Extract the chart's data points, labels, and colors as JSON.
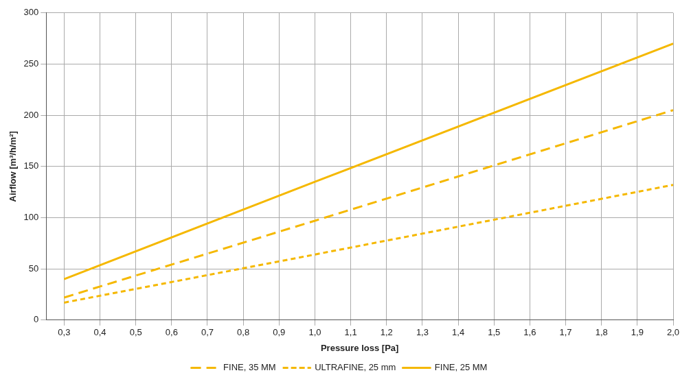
{
  "chart_data": {
    "type": "line",
    "xlabel": "Pressure loss [Pa]",
    "ylabel": "Airflow [m³/h/m²]",
    "x": [
      0.3,
      1.0,
      2.0
    ],
    "series": [
      {
        "name": "FINE, 35 MM",
        "color": "#f5b800",
        "values": [
          22,
          97,
          205
        ],
        "line_style": "dashed"
      },
      {
        "name": "ULTRAFINE, 25 mm",
        "color": "#f5b800",
        "values": [
          17,
          64,
          132
        ],
        "line_style": "dotted"
      },
      {
        "name": "FINE, 25 MM",
        "color": "#f5b800",
        "values": [
          40,
          135,
          270
        ],
        "line_style": "solid"
      }
    ],
    "xlim": [
      0.25,
      2.0
    ],
    "xticks": [
      {
        "value": 0.3,
        "label": "0,3"
      },
      {
        "value": 0.4,
        "label": "0,4"
      },
      {
        "value": 0.5,
        "label": "0,5"
      },
      {
        "value": 0.6,
        "label": "0,6"
      },
      {
        "value": 0.7,
        "label": "0,7"
      },
      {
        "value": 0.8,
        "label": "0,8"
      },
      {
        "value": 0.9,
        "label": "0,9"
      },
      {
        "value": 1.0,
        "label": "1,0"
      },
      {
        "value": 1.1,
        "label": "1,1"
      },
      {
        "value": 1.2,
        "label": "1,2"
      },
      {
        "value": 1.3,
        "label": "1,3"
      },
      {
        "value": 1.4,
        "label": "1,4"
      },
      {
        "value": 1.5,
        "label": "1,5"
      },
      {
        "value": 1.6,
        "label": "1,6"
      },
      {
        "value": 1.7,
        "label": "1,7"
      },
      {
        "value": 1.8,
        "label": "1,8"
      },
      {
        "value": 1.9,
        "label": "1,9"
      },
      {
        "value": 2.0,
        "label": "2,0"
      }
    ],
    "ylim": [
      0,
      300
    ],
    "yticks": [
      0,
      50,
      100,
      150,
      200,
      250,
      300
    ],
    "grid": true,
    "legend": "bottom",
    "marker": "none"
  }
}
